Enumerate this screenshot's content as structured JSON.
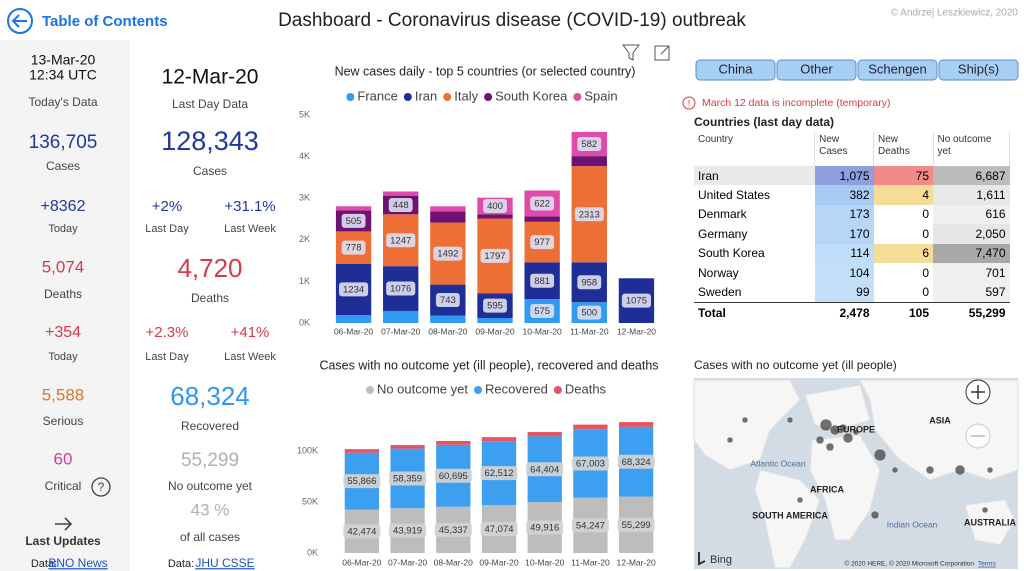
{
  "header": {
    "back_link": "Table of Contents",
    "title": "Dashboard - Coronavirus disease (COVID-19) outbreak",
    "copyright": "© Andrzej Leszkiewicz, 2020"
  },
  "today_panel": {
    "date": "13-Mar-20",
    "time": "12:34 UTC",
    "heading": "Today's Data",
    "cases": "136,705",
    "cases_label": "Cases",
    "new_cases": "+8362",
    "new_cases_label": "Today",
    "deaths": "5,074",
    "deaths_label": "Deaths",
    "new_deaths": "+354",
    "new_deaths_label": "Today",
    "serious": "5,588",
    "serious_label": "Serious",
    "critical": "60",
    "critical_label": "Critical",
    "last_updates": "Last Updates",
    "source_prefix": "Data:",
    "source": "BNO News"
  },
  "last_day_panel": {
    "date": "12-Mar-20",
    "heading": "Last Day Data",
    "cases": "128,343",
    "cases_label": "Cases",
    "cases_change_day": "+2%",
    "cases_change_week": "+31.1%",
    "change_day_label": "Last Day",
    "change_week_label": "Last Week",
    "deaths": "4,720",
    "deaths_label": "Deaths",
    "deaths_change_day": "+2.3%",
    "deaths_change_week": "+41%",
    "deaths_change_day_label": "Last Day",
    "deaths_change_week_label": "Last Week",
    "recovered": "68,324",
    "recovered_label": "Recovered",
    "no_outcome": "55,299",
    "no_outcome_label": "No outcome yet",
    "share": "43 %",
    "share_label": "of all cases",
    "source_prefix": "Data:",
    "source": "JHU CSSE"
  },
  "country_buttons": [
    "China",
    "Other",
    "Schengen",
    "Ship(s)"
  ],
  "notice": "March 12 data is incomplete (temporary)",
  "table": {
    "title": "Countries (last day data)",
    "columns": [
      "Country",
      "New Cases",
      "New Deaths",
      "No outcome yet"
    ],
    "rows": [
      [
        "Iran",
        "1,075",
        "75",
        "6,687"
      ],
      [
        "United States",
        "382",
        "4",
        "1,611"
      ],
      [
        "Denmark",
        "173",
        "0",
        "616"
      ],
      [
        "Germany",
        "170",
        "0",
        "2,050"
      ],
      [
        "South Korea",
        "114",
        "6",
        "7,470"
      ],
      [
        "Norway",
        "104",
        "0",
        "701"
      ],
      [
        "Sweden",
        "99",
        "0",
        "597"
      ]
    ],
    "total": [
      "Total",
      "2,478",
      "105",
      "55,299"
    ]
  },
  "chart_data": [
    {
      "type": "bar",
      "stacked": true,
      "title": "New cases daily - top 5 countries (or selected country)",
      "legend": "top",
      "categories": [
        "06-Mar-20",
        "07-Mar-20",
        "08-Mar-20",
        "09-Mar-20",
        "10-Mar-20",
        "11-Mar-20",
        "12-Mar-20"
      ],
      "series": [
        {
          "name": "France",
          "color": "#2f9bf0",
          "values": [
            190,
            290,
            180,
            120,
            575,
            500,
            null
          ],
          "value_labels": [
            null,
            null,
            null,
            null,
            "575",
            "500",
            null
          ]
        },
        {
          "name": "Iran",
          "color": "#1f2e96",
          "values": [
            1234,
            1076,
            743,
            595,
            881,
            958,
            1075
          ],
          "value_labels": [
            "1234",
            "1076",
            "743",
            "595",
            "881",
            "958",
            "1075"
          ]
        },
        {
          "name": "Italy",
          "color": "#ee6f35",
          "values": [
            778,
            1247,
            1492,
            1797,
            977,
            2313,
            null
          ],
          "value_labels": [
            "778",
            "1247",
            "1492",
            "1797",
            "977",
            "2313",
            null
          ]
        },
        {
          "name": "South Korea",
          "color": "#6b1273",
          "values": [
            505,
            448,
            270,
            100,
            130,
            240,
            null
          ],
          "value_labels": [
            "505",
            "448",
            null,
            null,
            null,
            null,
            null
          ]
        },
        {
          "name": "Spain",
          "color": "#e04aa8",
          "values": [
            100,
            100,
            120,
            400,
            622,
            582,
            null
          ],
          "value_labels": [
            null,
            null,
            null,
            "400",
            "622",
            "582",
            null
          ]
        }
      ],
      "ylim": [
        0,
        5000
      ],
      "yticks": [
        {
          "value": 0,
          "label": "0K"
        },
        {
          "value": 1000,
          "label": "1K"
        },
        {
          "value": 2000,
          "label": "2K"
        },
        {
          "value": 3000,
          "label": "3K"
        },
        {
          "value": 4000,
          "label": "4K"
        },
        {
          "value": 5000,
          "label": "5K"
        }
      ]
    },
    {
      "type": "bar",
      "stacked": true,
      "title": "Cases with no outcome yet (ill people), recovered and deaths",
      "legend": "top",
      "categories": [
        "06-Mar-20",
        "07-Mar-20",
        "08-Mar-20",
        "09-Mar-20",
        "10-Mar-20",
        "11-Mar-20",
        "12-Mar-20"
      ],
      "series": [
        {
          "name": "No outcome yet",
          "color": "#bdbdbd",
          "values": [
            42474,
            43919,
            45337,
            47074,
            49916,
            54247,
            55299
          ],
          "value_labels": [
            "42,474",
            "43,919",
            "45,337",
            "47,074",
            "49,916",
            "54,247",
            "55,299"
          ]
        },
        {
          "name": "Recovered",
          "color": "#3d9ff0",
          "values": [
            55866,
            58359,
            60695,
            62512,
            64404,
            67003,
            68324
          ],
          "value_labels": [
            "55,866",
            "58,359",
            "60,695",
            "62,512",
            "64,404",
            "67,003",
            "68,324"
          ]
        },
        {
          "name": "Deaths",
          "color": "#e25566",
          "values": [
            3460,
            3558,
            3802,
            3988,
            4262,
            4613,
            4720
          ]
        }
      ],
      "ylim": [
        0,
        125000
      ],
      "yticks": [
        {
          "value": 0,
          "label": "0K"
        },
        {
          "value": 50000,
          "label": "50K"
        },
        {
          "value": 100000,
          "label": "100K"
        }
      ]
    }
  ],
  "map": {
    "title": "Cases with no outcome yet (ill people)",
    "labels": [
      "EUROPE",
      "ASIA",
      "Atlantic Ocean",
      "AFRICA",
      "SOUTH AMERICA",
      "Indian Ocean",
      "AUSTRALIA"
    ],
    "provider": "Bing",
    "attribution": "© 2020 HERE, © 2020 Microsoft Corporation",
    "terms": "Terms"
  }
}
